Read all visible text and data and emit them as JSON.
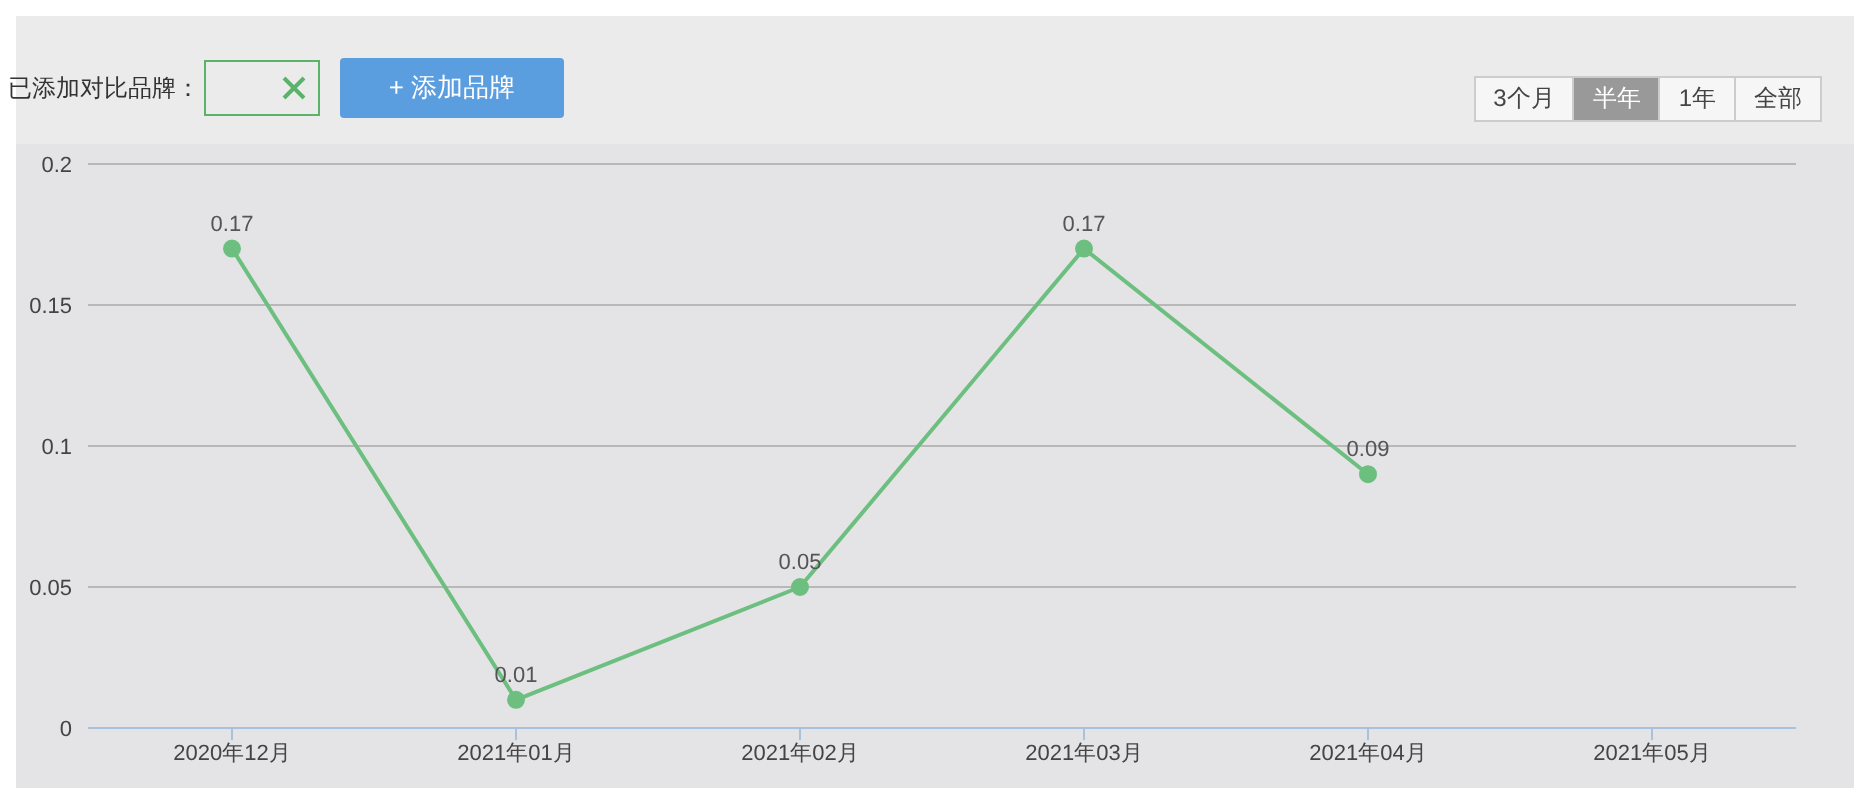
{
  "chart_data": {
    "type": "line",
    "categories": [
      "2020年12月",
      "2021年01月",
      "2021年02月",
      "2021年03月",
      "2021年04月",
      "2021年05月"
    ],
    "series": [
      {
        "color": "#6dbf7f",
        "values": [
          0.17,
          0.01,
          0.05,
          0.17,
          0.09,
          null
        ]
      }
    ],
    "ylim": [
      0,
      0.2
    ],
    "yticks": [
      0,
      0.05,
      0.1,
      0.15,
      0.2
    ],
    "grid": "y",
    "marker": "circle",
    "line_style": "solid",
    "data_labels": true,
    "annotations": [
      "已添加对比品牌：",
      "+ 添加品牌",
      "3个月",
      "半年",
      "1年",
      "全部"
    ]
  }
}
